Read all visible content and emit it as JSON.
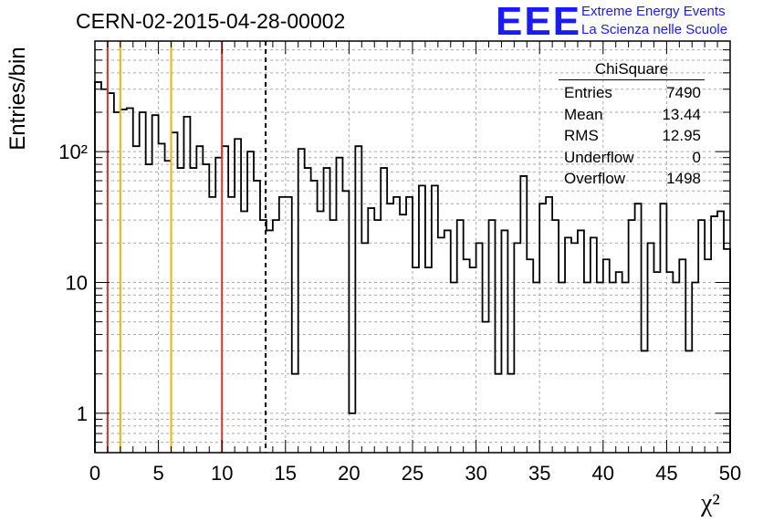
{
  "header": {
    "title": "CERN-02-2015-04-28-00002",
    "logo_text": "EEE",
    "logo_line1": "Extreme Energy Events",
    "logo_line2": "La Scienza nelle Scuole"
  },
  "stats_box": {
    "title": "ChiSquare",
    "rows": [
      {
        "label": "Entries",
        "value": "7490"
      },
      {
        "label": "Mean",
        "value": "13.44"
      },
      {
        "label": "RMS",
        "value": "12.95"
      },
      {
        "label": "Underflow",
        "value": "0"
      },
      {
        "label": "Overflow",
        "value": "1498"
      }
    ]
  },
  "colors": {
    "red_line": "#e8302a",
    "yellow_line": "#f2b400",
    "histogram": "#000000",
    "grid": "#aaaaaa",
    "logo": "#1a1aff"
  },
  "chart_data": {
    "type": "bar",
    "title": "CERN-02-2015-04-28-00002",
    "xlabel": "χ²",
    "ylabel": "Entries/bin",
    "xlim": [
      0,
      50
    ],
    "ylim": [
      0.5,
      700
    ],
    "yscale": "log",
    "grid": true,
    "bin_width": 0.5,
    "x_ticks": [
      "0",
      "5",
      "10",
      "15",
      "20",
      "25",
      "30",
      "35",
      "40",
      "45",
      "50"
    ],
    "y_ticks": [
      {
        "value": 1,
        "label": "1"
      },
      {
        "value": 10,
        "label": "10"
      },
      {
        "value": 100,
        "label": "10²"
      }
    ],
    "values": [
      340,
      300,
      280,
      200,
      210,
      215,
      110,
      200,
      80,
      190,
      115,
      85,
      140,
      75,
      185,
      75,
      110,
      80,
      45,
      90,
      110,
      45,
      125,
      35,
      100,
      60,
      30,
      25,
      30,
      45,
      45,
      2,
      105,
      75,
      60,
      35,
      75,
      30,
      90,
      50,
      1,
      110,
      20,
      37,
      30,
      75,
      40,
      45,
      33,
      45,
      13,
      55,
      13,
      55,
      22,
      25,
      10,
      30,
      15,
      13,
      20,
      5,
      30,
      2,
      25,
      2,
      20,
      65,
      15,
      10,
      40,
      45,
      30,
      10,
      22,
      20,
      25,
      10,
      22,
      10,
      15,
      10,
      12,
      10,
      30,
      40,
      3,
      20,
      12,
      40,
      12,
      10,
      15,
      3,
      10,
      30,
      15,
      32,
      35,
      18
    ],
    "vertical_lines": [
      {
        "x": 1,
        "color": "#e8302a",
        "style": "solid"
      },
      {
        "x": 2,
        "color": "#f2b400",
        "style": "solid"
      },
      {
        "x": 6,
        "color": "#f2b400",
        "style": "solid"
      },
      {
        "x": 10,
        "color": "#e8302a",
        "style": "solid"
      },
      {
        "x": 13.44,
        "color": "#000000",
        "style": "dashed"
      }
    ]
  }
}
